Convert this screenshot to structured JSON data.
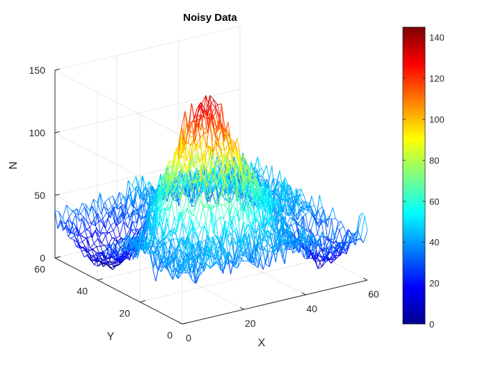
{
  "chart_data": {
    "type": "mesh3d",
    "title": "Noisy Data",
    "xlabel": "X",
    "ylabel": "Y",
    "zlabel": "N",
    "xlim": [
      0,
      60
    ],
    "ylim": [
      0,
      60
    ],
    "zlim": [
      0,
      150
    ],
    "xticks": [
      "0",
      "20",
      "40",
      "60"
    ],
    "yticks": [
      "0",
      "20",
      "40",
      "60"
    ],
    "zticks": [
      "0",
      "50",
      "100",
      "150"
    ],
    "grid": true,
    "colormap": "jet",
    "colorbar": {
      "range": [
        0,
        145
      ],
      "ticks": [
        "0",
        "20",
        "40",
        "60",
        "80",
        "100",
        "120",
        "140"
      ]
    },
    "surface": {
      "grid_size": [
        49,
        49
      ],
      "background_level": 40,
      "noise_amplitude": 13,
      "peak": {
        "x": 28,
        "y": 30,
        "height": 90,
        "sigma": 8.5
      },
      "pits": [
        {
          "x": 8,
          "y": 45,
          "depth": 38,
          "sigma": 8.5
        },
        {
          "x": 52,
          "y": 10,
          "depth": 30,
          "sigma": 5.5
        }
      ]
    }
  }
}
